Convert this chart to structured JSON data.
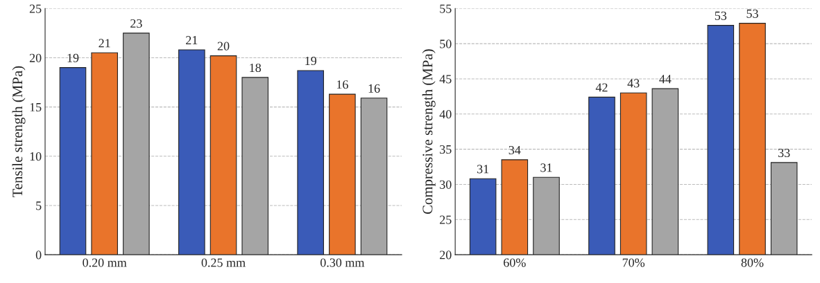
{
  "chart_data": [
    {
      "type": "bar",
      "ylabel": "Tensile strength (MPa)",
      "categories": [
        "0.20 mm",
        "0.25 mm",
        "0.30 mm"
      ],
      "series": [
        {
          "color": "#3a5bb8",
          "values": [
            19.0,
            20.8,
            18.7
          ],
          "value_labels": [
            "19",
            "21",
            "19"
          ]
        },
        {
          "color": "#e9742b",
          "values": [
            20.5,
            20.2,
            16.3
          ],
          "value_labels": [
            "21",
            "20",
            "16"
          ]
        },
        {
          "color": "#a5a5a5",
          "values": [
            22.5,
            18.0,
            15.9
          ],
          "value_labels": [
            "23",
            "18",
            "16"
          ]
        }
      ],
      "ylim": [
        0,
        25
      ],
      "yticks": [
        0,
        5,
        10,
        15,
        20,
        25
      ],
      "grid": "y",
      "legend": false
    },
    {
      "type": "bar",
      "ylabel": "Compressive strength (MPa)",
      "categories": [
        "60%",
        "70%",
        "80%"
      ],
      "series": [
        {
          "color": "#3a5bb8",
          "values": [
            30.8,
            42.4,
            52.6
          ],
          "value_labels": [
            "31",
            "42",
            "53"
          ]
        },
        {
          "color": "#e9742b",
          "values": [
            33.5,
            43.0,
            52.9
          ],
          "value_labels": [
            "34",
            "43",
            "53"
          ]
        },
        {
          "color": "#a5a5a5",
          "values": [
            31.0,
            43.6,
            33.1
          ],
          "value_labels": [
            "31",
            "44",
            "33"
          ]
        }
      ],
      "ylim": [
        20,
        55
      ],
      "yticks": [
        20,
        25,
        30,
        35,
        40,
        45,
        50,
        55
      ],
      "grid": "y",
      "legend": false
    }
  ]
}
